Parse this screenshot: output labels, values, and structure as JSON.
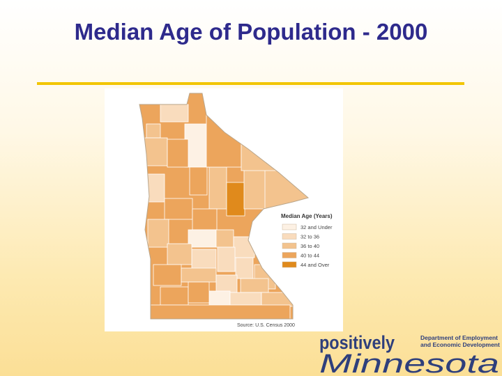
{
  "title": "Median Age of Population - 2000",
  "legend": {
    "title": "Median Age (Years)",
    "items": [
      {
        "label": "32 and Under",
        "color": "#fdf1e4"
      },
      {
        "label": "32 to 36",
        "color": "#f9dcbd"
      },
      {
        "label": "36 to 40",
        "color": "#f3c38e"
      },
      {
        "label": "40 to 44",
        "color": "#eca55c"
      },
      {
        "label": "44 and Over",
        "color": "#e08a1c"
      }
    ]
  },
  "source": "Source: U.S. Census 2000",
  "logo": {
    "tagline": "positively",
    "state": "Minnesota",
    "department": [
      "Department of Employment",
      "and Economic Development"
    ]
  }
}
